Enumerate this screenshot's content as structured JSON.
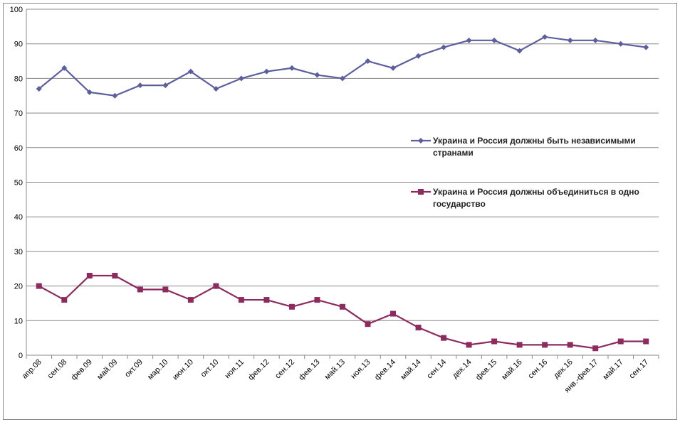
{
  "chart_data": {
    "type": "line",
    "title": "",
    "xlabel": "",
    "ylabel": "",
    "ylim": [
      0,
      100
    ],
    "yticks": [
      0,
      10,
      20,
      30,
      40,
      50,
      60,
      70,
      80,
      90,
      100
    ],
    "grid": true,
    "legend_position": "right-middle",
    "categories": [
      "апр.08",
      "сен.08",
      "фев.09",
      "май.09",
      "окт.09",
      "мар.10",
      "июн.10",
      "окт.10",
      "ноя.11",
      "фев.12",
      "сен.12",
      "фев.13",
      "май.13",
      "ноя.13",
      "фев.14",
      "май.14",
      "сен.14",
      "дек.14",
      "фев.15",
      "май.16",
      "сен.16",
      "дек.16",
      "янв.-фев.17",
      "май.17",
      "сен.17"
    ],
    "series": [
      {
        "name": "Украина и Россия должны быть независимыми странами",
        "legend_lines": [
          "Украина и Россия должны быть независимыми",
          "странами"
        ],
        "color": "#5B5F9E",
        "marker": "diamond",
        "values": [
          77,
          83,
          76,
          75,
          78,
          78,
          82,
          77,
          80,
          82,
          83,
          81,
          80,
          85,
          83,
          86.5,
          89,
          91,
          91,
          88,
          92,
          91,
          91,
          90,
          89
        ]
      },
      {
        "name": "Украина и Россия должны объединиться в одно государство",
        "legend_lines": [
          "Украина и Россия должны объединиться в одно",
          "государство"
        ],
        "color": "#8E2B5E",
        "marker": "square",
        "values": [
          20,
          16,
          23,
          23,
          19,
          19,
          16,
          20,
          16,
          16,
          14,
          16,
          14,
          9,
          12,
          8,
          5,
          3,
          4,
          3,
          3,
          3,
          2,
          4,
          4
        ]
      }
    ]
  }
}
